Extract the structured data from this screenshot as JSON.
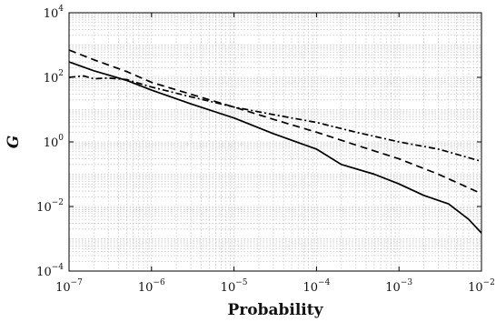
{
  "chart_data": {
    "type": "line",
    "title": "",
    "xlabel": "Probability",
    "ylabel": "G",
    "xscale": "log",
    "yscale": "log",
    "xlim": [
      1e-07,
      0.01
    ],
    "ylim": [
      0.0001,
      10000.0
    ],
    "grid": true,
    "grid_style": "dotted",
    "x_ticks": [
      {
        "base": "10",
        "exp": "−7"
      },
      {
        "base": "10",
        "exp": "−6"
      },
      {
        "base": "10",
        "exp": "−5"
      },
      {
        "base": "10",
        "exp": "−4"
      },
      {
        "base": "10",
        "exp": "−3"
      },
      {
        "base": "10",
        "exp": "−2"
      }
    ],
    "y_ticks": [
      {
        "base": "10",
        "exp": "−4"
      },
      {
        "base": "10",
        "exp": "−2"
      },
      {
        "base": "10",
        "exp": "0"
      },
      {
        "base": "10",
        "exp": "2"
      },
      {
        "base": "10",
        "exp": "4"
      }
    ],
    "x_tick_values": [
      1e-07,
      1e-06,
      1e-05,
      0.0001,
      0.001,
      0.01
    ],
    "y_tick_values": [
      0.0001,
      0.01,
      1,
      100,
      10000
    ],
    "series": [
      {
        "style": "solid",
        "color": "#000000",
        "x": [
          1e-07,
          2e-07,
          5e-07,
          1e-06,
          3e-06,
          1e-05,
          3e-05,
          0.0001,
          0.0002,
          0.0005,
          0.001,
          0.002,
          0.004,
          0.007,
          0.01
        ],
        "y": [
          300,
          160,
          80,
          40,
          15,
          5.5,
          1.8,
          0.6,
          0.2,
          0.1,
          0.05,
          0.022,
          0.012,
          0.004,
          0.0015
        ]
      },
      {
        "style": "dashed",
        "color": "#000000",
        "x": [
          1e-07,
          2e-07,
          5e-07,
          1e-06,
          3e-06,
          1e-05,
          3e-05,
          0.0001,
          0.0003,
          0.001,
          0.003,
          0.01
        ],
        "y": [
          700,
          350,
          150,
          70,
          30,
          12,
          5,
          2,
          0.8,
          0.3,
          0.1,
          0.025
        ]
      },
      {
        "style": "dashdot",
        "color": "#000000",
        "x": [
          1e-07,
          1.5e-07,
          2e-07,
          3e-07,
          5e-07,
          1e-06,
          3e-06,
          1e-05,
          3e-05,
          0.0001,
          0.0003,
          0.001,
          0.003,
          0.01
        ],
        "y": [
          100,
          110,
          90,
          95,
          85,
          50,
          25,
          12,
          7,
          4,
          2,
          1,
          0.6,
          0.25
        ]
      }
    ]
  }
}
